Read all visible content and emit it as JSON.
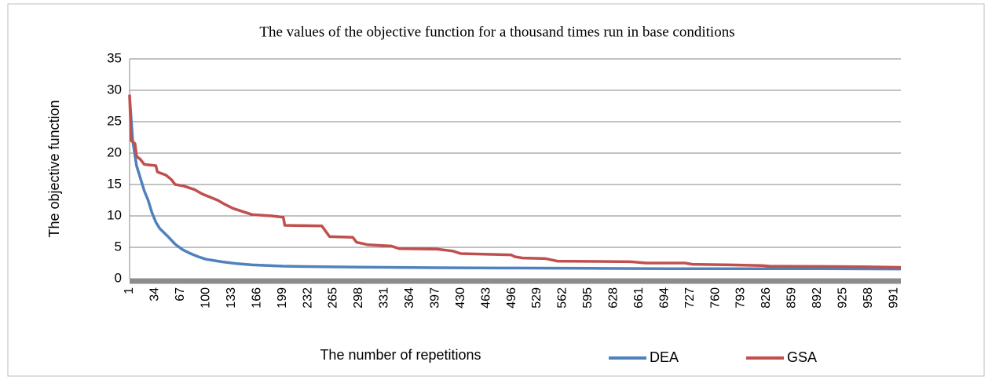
{
  "chart_data": {
    "type": "line",
    "title": "The values of the objective function for a thousand times run in base conditions",
    "xlabel": "The number of repetitions",
    "ylabel": "The objective function",
    "xlim": [
      1,
      1000
    ],
    "xticks": [
      1,
      34,
      67,
      100,
      133,
      166,
      199,
      232,
      265,
      298,
      331,
      364,
      397,
      430,
      463,
      496,
      529,
      562,
      595,
      628,
      661,
      694,
      727,
      760,
      793,
      826,
      859,
      892,
      925,
      958,
      991
    ],
    "ylim": [
      0,
      35
    ],
    "yticks": [
      0,
      5,
      10,
      15,
      20,
      25,
      30,
      35
    ],
    "grid": true,
    "legend": "bottom-right",
    "series": [
      {
        "name": "DEA",
        "color": "#4f81bd",
        "x": [
          1,
          5,
          10,
          15,
          20,
          25,
          30,
          35,
          40,
          50,
          60,
          70,
          80,
          90,
          100,
          120,
          140,
          160,
          200,
          250,
          300,
          400,
          500,
          600,
          700,
          800,
          900,
          1000
        ],
        "values": [
          29,
          22,
          18,
          16,
          14,
          12.5,
          10.5,
          9,
          8,
          6.8,
          5.5,
          4.6,
          4,
          3.5,
          3.1,
          2.7,
          2.4,
          2.2,
          2.0,
          1.9,
          1.85,
          1.75,
          1.7,
          1.65,
          1.6,
          1.6,
          1.6,
          1.55
        ]
      },
      {
        "name": "GSA",
        "color": "#c0504d",
        "x": [
          1,
          3,
          8,
          10,
          15,
          20,
          35,
          37,
          48,
          55,
          60,
          70,
          85,
          95,
          105,
          115,
          125,
          135,
          160,
          185,
          200,
          202,
          250,
          260,
          290,
          295,
          310,
          340,
          350,
          400,
          420,
          430,
          495,
          500,
          510,
          540,
          555,
          650,
          670,
          720,
          730,
          780,
          820,
          830,
          900,
          950,
          1000
        ],
        "values": [
          29.3,
          22,
          21.5,
          19.5,
          19,
          18.2,
          18,
          17,
          16.5,
          15.8,
          15,
          14.8,
          14.2,
          13.5,
          13,
          12.5,
          11.8,
          11.2,
          10.2,
          10,
          9.8,
          8.5,
          8.4,
          6.7,
          6.6,
          5.8,
          5.4,
          5.2,
          4.8,
          4.7,
          4.4,
          4,
          3.8,
          3.5,
          3.3,
          3.2,
          2.8,
          2.7,
          2.5,
          2.5,
          2.3,
          2.2,
          2.1,
          2.0,
          1.95,
          1.9,
          1.8
        ]
      }
    ]
  }
}
